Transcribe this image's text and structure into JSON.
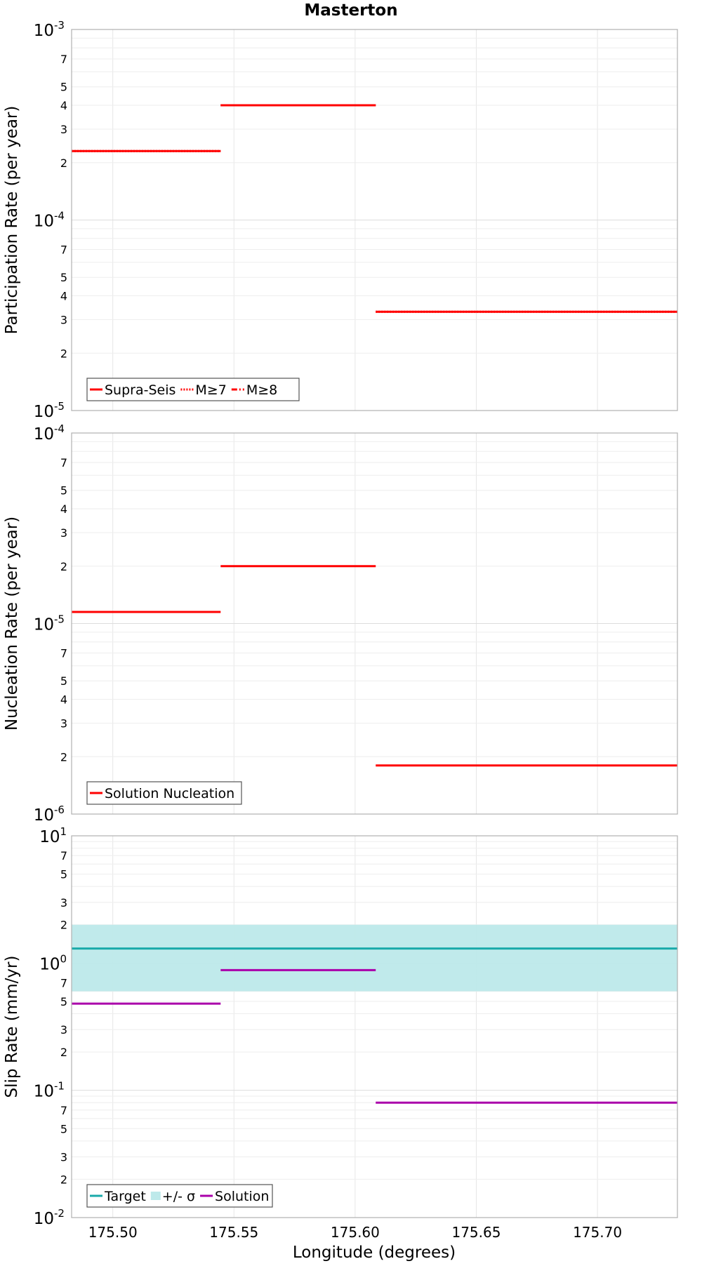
{
  "chart_data": {
    "type": "line",
    "title": "Masterton",
    "xlabel": "Longitude (degrees)",
    "xlim": [
      175.483,
      175.733
    ],
    "x_ticks": [
      175.5,
      175.55,
      175.6,
      175.65,
      175.7
    ],
    "x_tick_labels": [
      "175.50",
      "175.55",
      "175.60",
      "175.65",
      "175.70"
    ],
    "grid": true,
    "panels": [
      {
        "id": "participation",
        "ylabel": "Participation Rate (per year)",
        "yscale": "log",
        "ylim": [
          1e-05,
          0.001
        ],
        "y_major_labels": [
          {
            "base": "10",
            "exp": "-5"
          },
          {
            "base": "10",
            "exp": "-4"
          },
          {
            "base": "10",
            "exp": "-3"
          }
        ],
        "y_minor_labels": [
          "2",
          "3",
          "4",
          "5",
          "7"
        ],
        "legend_position": "bottom-left",
        "legend": [
          {
            "name": "Supra-Seis",
            "color": "#ff0000",
            "style": "solid"
          },
          {
            "name": "M≥7",
            "color": "#ff0000",
            "style": "dotted"
          },
          {
            "name": "M≥8",
            "color": "#ff0000",
            "style": "dashdot"
          }
        ],
        "series": [
          {
            "name": "Supra-Seis",
            "color": "#ff0000",
            "style": "solid",
            "segments": [
              {
                "x": [
                  175.483,
                  175.5445
                ],
                "y": 0.00023
              },
              {
                "x": [
                  175.5445,
                  175.6085
                ],
                "y": 0.0004
              },
              {
                "x": [
                  175.6085,
                  175.733
                ],
                "y": 3.3e-05
              }
            ]
          },
          {
            "name": "M≥7",
            "color": "#ff0000",
            "style": "dotted",
            "segments": [
              {
                "x": [
                  175.483,
                  175.5445
                ],
                "y": 0.00023
              },
              {
                "x": [
                  175.5445,
                  175.6085
                ],
                "y": 0.0004
              },
              {
                "x": [
                  175.6085,
                  175.733
                ],
                "y": 3.3e-05
              }
            ]
          }
        ]
      },
      {
        "id": "nucleation",
        "ylabel": "Nucleation Rate (per year)",
        "yscale": "log",
        "ylim": [
          1e-06,
          0.0001
        ],
        "y_major_labels": [
          {
            "base": "10",
            "exp": "-6"
          },
          {
            "base": "10",
            "exp": "-5"
          },
          {
            "base": "10",
            "exp": "-4"
          }
        ],
        "y_minor_labels": [
          "2",
          "3",
          "4",
          "5",
          "7"
        ],
        "legend_position": "bottom-left",
        "legend": [
          {
            "name": "Solution Nucleation",
            "color": "#ff0000",
            "style": "solid"
          }
        ],
        "series": [
          {
            "name": "Solution Nucleation",
            "color": "#ff0000",
            "style": "solid",
            "segments": [
              {
                "x": [
                  175.483,
                  175.5445
                ],
                "y": 1.15e-05
              },
              {
                "x": [
                  175.5445,
                  175.6085
                ],
                "y": 2e-05
              },
              {
                "x": [
                  175.6085,
                  175.733
                ],
                "y": 1.8e-06
              }
            ]
          }
        ]
      },
      {
        "id": "slip",
        "ylabel": "Slip Rate (mm/yr)",
        "yscale": "log",
        "ylim": [
          0.01,
          10
        ],
        "y_major_labels": [
          {
            "base": "10",
            "exp": "-2"
          },
          {
            "base": "10",
            "exp": "-1"
          },
          {
            "base": "10",
            "exp": "0"
          },
          {
            "base": "10",
            "exp": "1"
          }
        ],
        "y_minor_labels": [
          "2",
          "3",
          "5",
          "7"
        ],
        "legend_position": "bottom-left",
        "legend": [
          {
            "name": "Target",
            "color": "#1aaaaa",
            "style": "solid"
          },
          {
            "name": "+/- σ",
            "color": "#bde9ea",
            "style": "band"
          },
          {
            "name": "Solution",
            "color": "#aa00aa",
            "style": "solid"
          }
        ],
        "band": {
          "name": "+/- σ",
          "color": "#bde9ea",
          "x": [
            175.483,
            175.733
          ],
          "y": [
            0.6,
            2.0
          ]
        },
        "series": [
          {
            "name": "Target",
            "color": "#1aaaaa",
            "style": "solid",
            "segments": [
              {
                "x": [
                  175.483,
                  175.733
                ],
                "y": 1.3
              }
            ]
          },
          {
            "name": "Solution",
            "color": "#aa00aa",
            "style": "solid",
            "segments": [
              {
                "x": [
                  175.483,
                  175.5445
                ],
                "y": 0.48
              },
              {
                "x": [
                  175.5445,
                  175.6085
                ],
                "y": 0.88
              },
              {
                "x": [
                  175.6085,
                  175.733
                ],
                "y": 0.08
              }
            ]
          }
        ]
      }
    ]
  }
}
